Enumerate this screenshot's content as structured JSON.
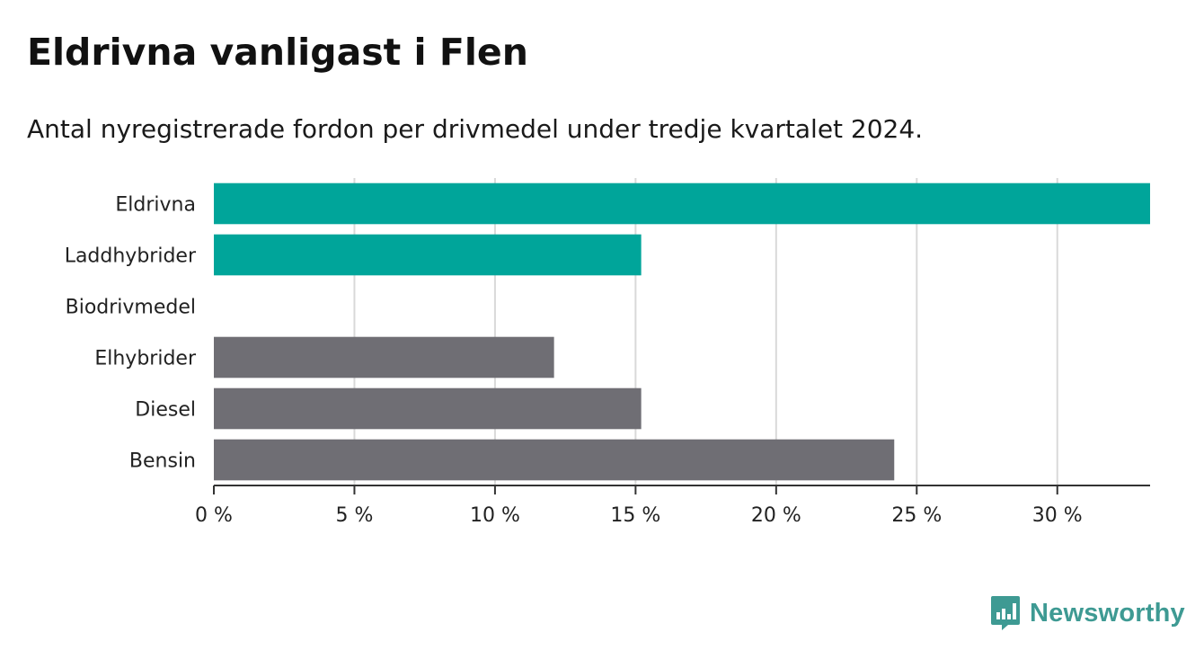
{
  "header": {
    "title": "Eldrivna vanligast i Flen",
    "subtitle": "Antal nyregistrerade fordon per drivmedel under tredje kvartalet 2024."
  },
  "brand": {
    "name": "Newsworthy",
    "icon": "newsworthy-logo-icon",
    "color": "#3e9a93"
  },
  "chart_data": {
    "type": "bar",
    "orientation": "horizontal",
    "categories": [
      "Eldrivna",
      "Laddhybrider",
      "Biodrivmedel",
      "Elhybrider",
      "Diesel",
      "Bensin"
    ],
    "values": [
      33.3,
      15.2,
      0,
      12.1,
      15.2,
      24.2
    ],
    "bar_colors": [
      "#00a59a",
      "#00a59a",
      "#00a59a",
      "#6f6e74",
      "#6f6e74",
      "#6f6e74"
    ],
    "xlim": [
      0,
      33.3
    ],
    "xticks": [
      0,
      5,
      10,
      15,
      20,
      25,
      30
    ],
    "xtick_labels": [
      "0 %",
      "5 %",
      "10 %",
      "15 %",
      "20 %",
      "25 %",
      "30 %"
    ],
    "title": "Eldrivna vanligast i Flen",
    "subtitle": "Antal nyregistrerade fordon per drivmedel under tredje kvartalet 2024.",
    "xlabel": "",
    "ylabel": "",
    "grid": true,
    "legend": "none"
  }
}
